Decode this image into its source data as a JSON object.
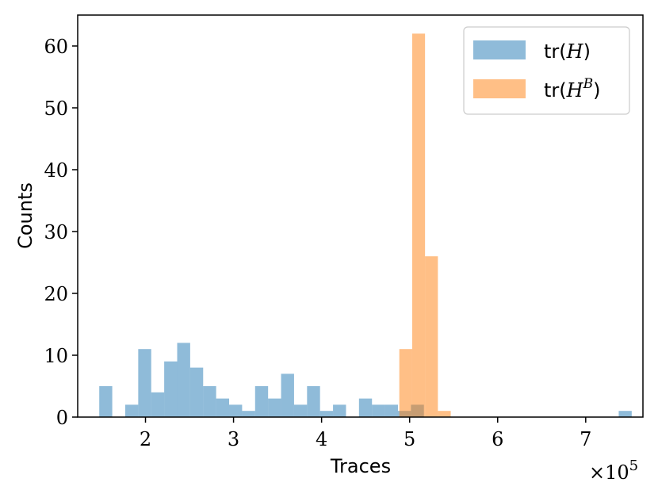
{
  "chart_data": {
    "type": "histogram",
    "xlabel": "Traces",
    "ylabel": "Counts",
    "x_offset_label": "×10",
    "x_offset_exponent": "5",
    "x_unit_multiplier": 100000,
    "xlim": [
      1.23,
      7.65
    ],
    "ylim": [
      0,
      65
    ],
    "x_ticks": [
      2,
      3,
      4,
      5,
      6,
      7
    ],
    "x_tick_labels": [
      "2",
      "3",
      "4",
      "5",
      "6",
      "7"
    ],
    "y_ticks": [
      0,
      10,
      20,
      30,
      40,
      50,
      60
    ],
    "y_tick_labels": [
      "0",
      "10",
      "20",
      "30",
      "40",
      "50",
      "60"
    ],
    "legend_position": "top-right",
    "series": [
      {
        "name": "tr(H)",
        "legend_text": "tr(",
        "legend_var": "H",
        "legend_sup": "",
        "legend_close": ")",
        "color": "#1f77b4",
        "opacity": 0.5,
        "bin_start": 1.475,
        "bin_width": 0.1475,
        "counts": [
          5,
          0,
          2,
          11,
          4,
          9,
          12,
          8,
          5,
          3,
          2,
          1,
          5,
          3,
          7,
          2,
          5,
          1,
          2,
          0,
          3,
          2,
          2,
          1,
          2,
          0,
          0,
          0,
          0,
          0,
          0,
          0,
          0,
          0,
          0,
          0,
          0,
          0,
          0,
          0,
          1
        ]
      },
      {
        "name": "tr(H^B)",
        "legend_text": "tr(",
        "legend_var": "H",
        "legend_sup": "B",
        "legend_close": ")",
        "color": "#ff7f0e",
        "opacity": 0.5,
        "bin_start": 4.883,
        "bin_width": 0.146,
        "counts": [
          11,
          62,
          26,
          1
        ]
      }
    ]
  }
}
